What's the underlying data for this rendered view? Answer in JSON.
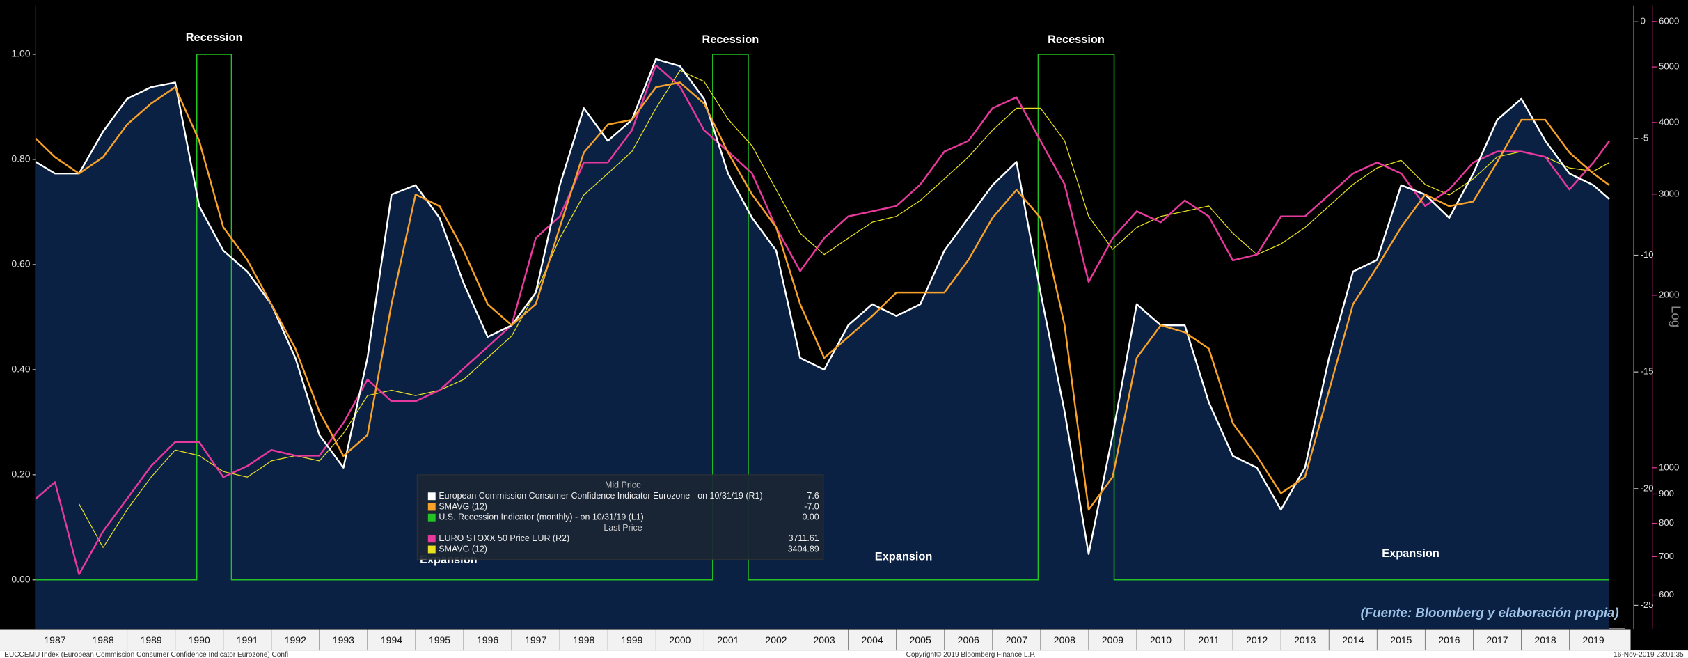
{
  "chart_data": {
    "type": "line",
    "xlim": [
      1987.1,
      2020.16
    ],
    "xticks": [
      1987,
      1988,
      1989,
      1990,
      1991,
      1992,
      1993,
      1994,
      1995,
      1996,
      1997,
      1998,
      1999,
      2000,
      2001,
      2002,
      2003,
      2004,
      2005,
      2006,
      2007,
      2008,
      2009,
      2010,
      2011,
      2012,
      2013,
      2014,
      2015,
      2016,
      2017,
      2018,
      2019
    ],
    "ylim": [
      -0.093,
      1.093
    ],
    "yticks": [
      {
        "value": 0,
        "label": "0.00"
      },
      {
        "value": 0.2,
        "label": "0.20"
      },
      {
        "value": 0.4,
        "label": "0.40"
      },
      {
        "value": 0.6,
        "label": "0.60"
      },
      {
        "value": 0.8,
        "label": "0.80"
      },
      {
        "value": 1,
        "label": "1.00"
      }
    ],
    "y2lim": [
      -26.0,
      0.7
    ],
    "y2ticks": [
      0,
      -5,
      -10,
      -15,
      -20,
      -25
    ],
    "y3lim": [
      524,
      6400
    ],
    "y3_log": true,
    "y3_label": "Log",
    "y3ticks": [
      600,
      700,
      800,
      900,
      1000,
      2000,
      3000,
      4000,
      5000,
      6000
    ],
    "recession_labels": [
      "Recession",
      "Recession",
      "Recession"
    ],
    "expansion_labels": [
      "Expansion",
      "Expansion",
      "Expansion"
    ],
    "source": "(Fuente: Bloomberg y elaboración propia)",
    "legend_headers": [
      "Mid Price",
      "Last Price"
    ],
    "footer": {
      "left": "EUCCEMU Index (European Commission Consumer Confidence Indicator Eurozone) Confi",
      "center": "Copyright© 2019 Bloomberg Finance L.P.",
      "right": "16-Nov-2019 23:01:35"
    },
    "series": [
      {
        "name": "European Commission Consumer Confidence Indicator Eurozone -  on 10/31/19  (R1)",
        "legend_value": "-7.6",
        "color": "#ffffff",
        "area_color": "#0b2144",
        "axis": "y2",
        "x": [
          1987.1,
          1987.5,
          1988,
          1988.5,
          1989,
          1989.5,
          1990,
          1990.5,
          1991,
          1991.5,
          1992,
          1992.5,
          1993,
          1993.5,
          1994,
          1994.5,
          1995,
          1995.5,
          1996,
          1996.5,
          1997,
          1997.5,
          1998,
          1998.5,
          1999,
          1999.5,
          2000,
          2000.5,
          2001,
          2001.5,
          2002,
          2002.5,
          2003,
          2003.5,
          2004,
          2004.5,
          2005,
          2005.5,
          2006,
          2006.5,
          2007,
          2007.5,
          2008,
          2008.5,
          2009,
          2009.5,
          2010,
          2010.5,
          2011,
          2011.5,
          2012,
          2012.5,
          2013,
          2013.5,
          2014,
          2014.5,
          2015,
          2015.5,
          2016,
          2016.5,
          2017,
          2017.5,
          2018,
          2018.5,
          2019,
          2019.5,
          2019.83
        ],
        "values": [
          -6.0,
          -6.5,
          -6.5,
          -4.7,
          -3.3,
          -2.8,
          -2.6,
          -7.9,
          -9.8,
          -10.7,
          -12.1,
          -14.4,
          -17.7,
          -19.1,
          -14.4,
          -7.4,
          -7.0,
          -8.4,
          -11.2,
          -13.5,
          -13.0,
          -11.6,
          -7.0,
          -3.7,
          -5.1,
          -4.2,
          -1.6,
          -1.9,
          -3.3,
          -6.5,
          -8.4,
          -9.8,
          -14.4,
          -14.9,
          -13.0,
          -12.1,
          -12.6,
          -12.1,
          -9.8,
          -8.4,
          -7.0,
          -6.0,
          -11.6,
          -16.7,
          -22.8,
          -17.7,
          -12.1,
          -13.0,
          -13.0,
          -16.3,
          -18.6,
          -19.1,
          -20.9,
          -19.1,
          -14.4,
          -10.7,
          -10.2,
          -7.0,
          -7.4,
          -8.4,
          -6.5,
          -4.2,
          -3.3,
          -5.1,
          -6.5,
          -7.0,
          -7.6
        ]
      },
      {
        "name": "SMAVG (12)",
        "legend_value": "-7.0",
        "color": "#f7a128",
        "axis": "y2",
        "x": [
          1987.1,
          1987.5,
          1988,
          1988.5,
          1989,
          1989.5,
          1990,
          1990.5,
          1991,
          1991.5,
          1992,
          1992.5,
          1993,
          1993.5,
          1994,
          1994.5,
          1995,
          1995.5,
          1996,
          1996.5,
          1997,
          1997.5,
          1998,
          1998.5,
          1999,
          1999.5,
          2000,
          2000.5,
          2001,
          2001.5,
          2002,
          2002.5,
          2003,
          2003.5,
          2004,
          2004.5,
          2005,
          2005.5,
          2006,
          2006.5,
          2007,
          2007.5,
          2008,
          2008.5,
          2009,
          2009.5,
          2010,
          2010.5,
          2011,
          2011.5,
          2012,
          2012.5,
          2013,
          2013.5,
          2014,
          2014.5,
          2015,
          2015.5,
          2016,
          2016.5,
          2017,
          2017.5,
          2018,
          2018.5,
          2019,
          2019.5,
          2019.83
        ],
        "values": [
          -5.0,
          -5.8,
          -6.5,
          -5.8,
          -4.4,
          -3.5,
          -2.8,
          -5.1,
          -8.8,
          -10.2,
          -12.1,
          -14.0,
          -16.7,
          -18.6,
          -17.7,
          -12.1,
          -7.4,
          -7.9,
          -9.8,
          -12.1,
          -13.0,
          -12.1,
          -8.8,
          -5.6,
          -4.4,
          -4.2,
          -2.8,
          -2.6,
          -3.5,
          -5.6,
          -7.4,
          -8.8,
          -12.1,
          -14.4,
          -13.5,
          -12.6,
          -11.6,
          -11.6,
          -11.6,
          -10.2,
          -8.4,
          -7.2,
          -8.4,
          -13.0,
          -20.9,
          -19.5,
          -14.4,
          -13.0,
          -13.3,
          -14.0,
          -17.2,
          -18.6,
          -20.2,
          -19.5,
          -15.8,
          -12.1,
          -10.5,
          -8.8,
          -7.4,
          -7.9,
          -7.7,
          -6.0,
          -4.2,
          -4.2,
          -5.6,
          -6.5,
          -7.0
        ]
      },
      {
        "name": "U.S. Recession Indicator (monthly) -  on 10/31/19  (L1)",
        "legend_value": "0.00",
        "color": "#22c322",
        "axis": "y",
        "x": [
          1987.1,
          1990.45,
          1990.45,
          1991.17,
          1991.17,
          2001.18,
          2001.18,
          2001.92,
          2001.92,
          2007.95,
          2007.95,
          2009.53,
          2009.53,
          2019.83
        ],
        "values": [
          0,
          0,
          1,
          1,
          0,
          0,
          1,
          1,
          0,
          0,
          1,
          1,
          0,
          0
        ]
      },
      {
        "name": "EURO STOXX 50 Price EUR  (R2)",
        "legend_value": "3711.61",
        "color": "#e6399b",
        "axis": "y3",
        "x": [
          1987.1,
          1987.5,
          1988,
          1988.5,
          1989,
          1989.5,
          1990,
          1990.5,
          1991,
          1991.5,
          1992,
          1992.5,
          1993,
          1993.5,
          1994,
          1994.5,
          1995,
          1995.5,
          1996,
          1996.5,
          1997,
          1997.5,
          1998,
          1998.5,
          1999,
          1999.5,
          2000,
          2000.5,
          2001,
          2001.5,
          2002,
          2002.5,
          2003,
          2003.5,
          2004,
          2004.5,
          2005,
          2005.5,
          2006,
          2006.5,
          2007,
          2007.5,
          2008,
          2008.5,
          2009,
          2009.5,
          2010,
          2010.5,
          2011,
          2011.5,
          2012,
          2012.5,
          2013,
          2013.5,
          2014,
          2014.5,
          2015,
          2015.5,
          2016,
          2016.5,
          2017,
          2017.5,
          2018,
          2018.5,
          2019,
          2019.5,
          2019.83
        ],
        "values": [
          883,
          944,
          652,
          775,
          883,
          1007,
          1109,
          1109,
          963,
          1007,
          1074,
          1050,
          1050,
          1197,
          1425,
          1306,
          1306,
          1365,
          1490,
          1625,
          1774,
          2514,
          2744,
          3407,
          3407,
          3878,
          5035,
          4621,
          3878,
          3560,
          3260,
          2624,
          2203,
          2514,
          2744,
          2800,
          2860,
          3119,
          3560,
          3716,
          4236,
          4425,
          3716,
          3119,
          2109,
          2514,
          2800,
          2680,
          2925,
          2744,
          2300,
          2353,
          2744,
          2744,
          2990,
          3260,
          3407,
          3260,
          2860,
          3056,
          3407,
          3560,
          3560,
          3484,
          3056,
          3407,
          3711.61
        ]
      },
      {
        "name": "SMAVG (12)",
        "legend_value": "3404.89",
        "color": "#e8e020",
        "axis": "y3",
        "x": [
          1988,
          1988.5,
          1989,
          1989.5,
          1990,
          1990.5,
          1991,
          1991.5,
          1992,
          1992.5,
          1993,
          1993.5,
          1994,
          1994.5,
          1995,
          1995.5,
          1996,
          1996.5,
          1997,
          1997.5,
          1998,
          1998.5,
          1999,
          1999.5,
          2000,
          2000.5,
          2001,
          2001.5,
          2002,
          2002.5,
          2003,
          2003.5,
          2004,
          2004.5,
          2005,
          2005.5,
          2006,
          2006.5,
          2007,
          2007.5,
          2008,
          2008.5,
          2009,
          2009.5,
          2010,
          2010.5,
          2011,
          2011.5,
          2012,
          2012.5,
          2013,
          2013.5,
          2014,
          2014.5,
          2015,
          2015.5,
          2016,
          2016.5,
          2017,
          2017.5,
          2018,
          2018.5,
          2019,
          2019.5,
          2019.83
        ],
        "values": [
          865,
          726,
          845,
          963,
          1074,
          1050,
          985,
          963,
          1028,
          1050,
          1028,
          1148,
          1336,
          1365,
          1336,
          1365,
          1425,
          1556,
          1698,
          2020,
          2514,
          2990,
          3260,
          3560,
          4236,
          4930,
          4717,
          4053,
          3641,
          3056,
          2564,
          2353,
          2514,
          2680,
          2744,
          2925,
          3190,
          3484,
          3878,
          4236,
          4236,
          3716,
          2744,
          2404,
          2624,
          2744,
          2800,
          2860,
          2564,
          2353,
          2456,
          2624,
          2860,
          3119,
          3333,
          3436,
          3119,
          2990,
          3190,
          3484,
          3560,
          3484,
          3333,
          3289,
          3404.89
        ]
      }
    ]
  }
}
